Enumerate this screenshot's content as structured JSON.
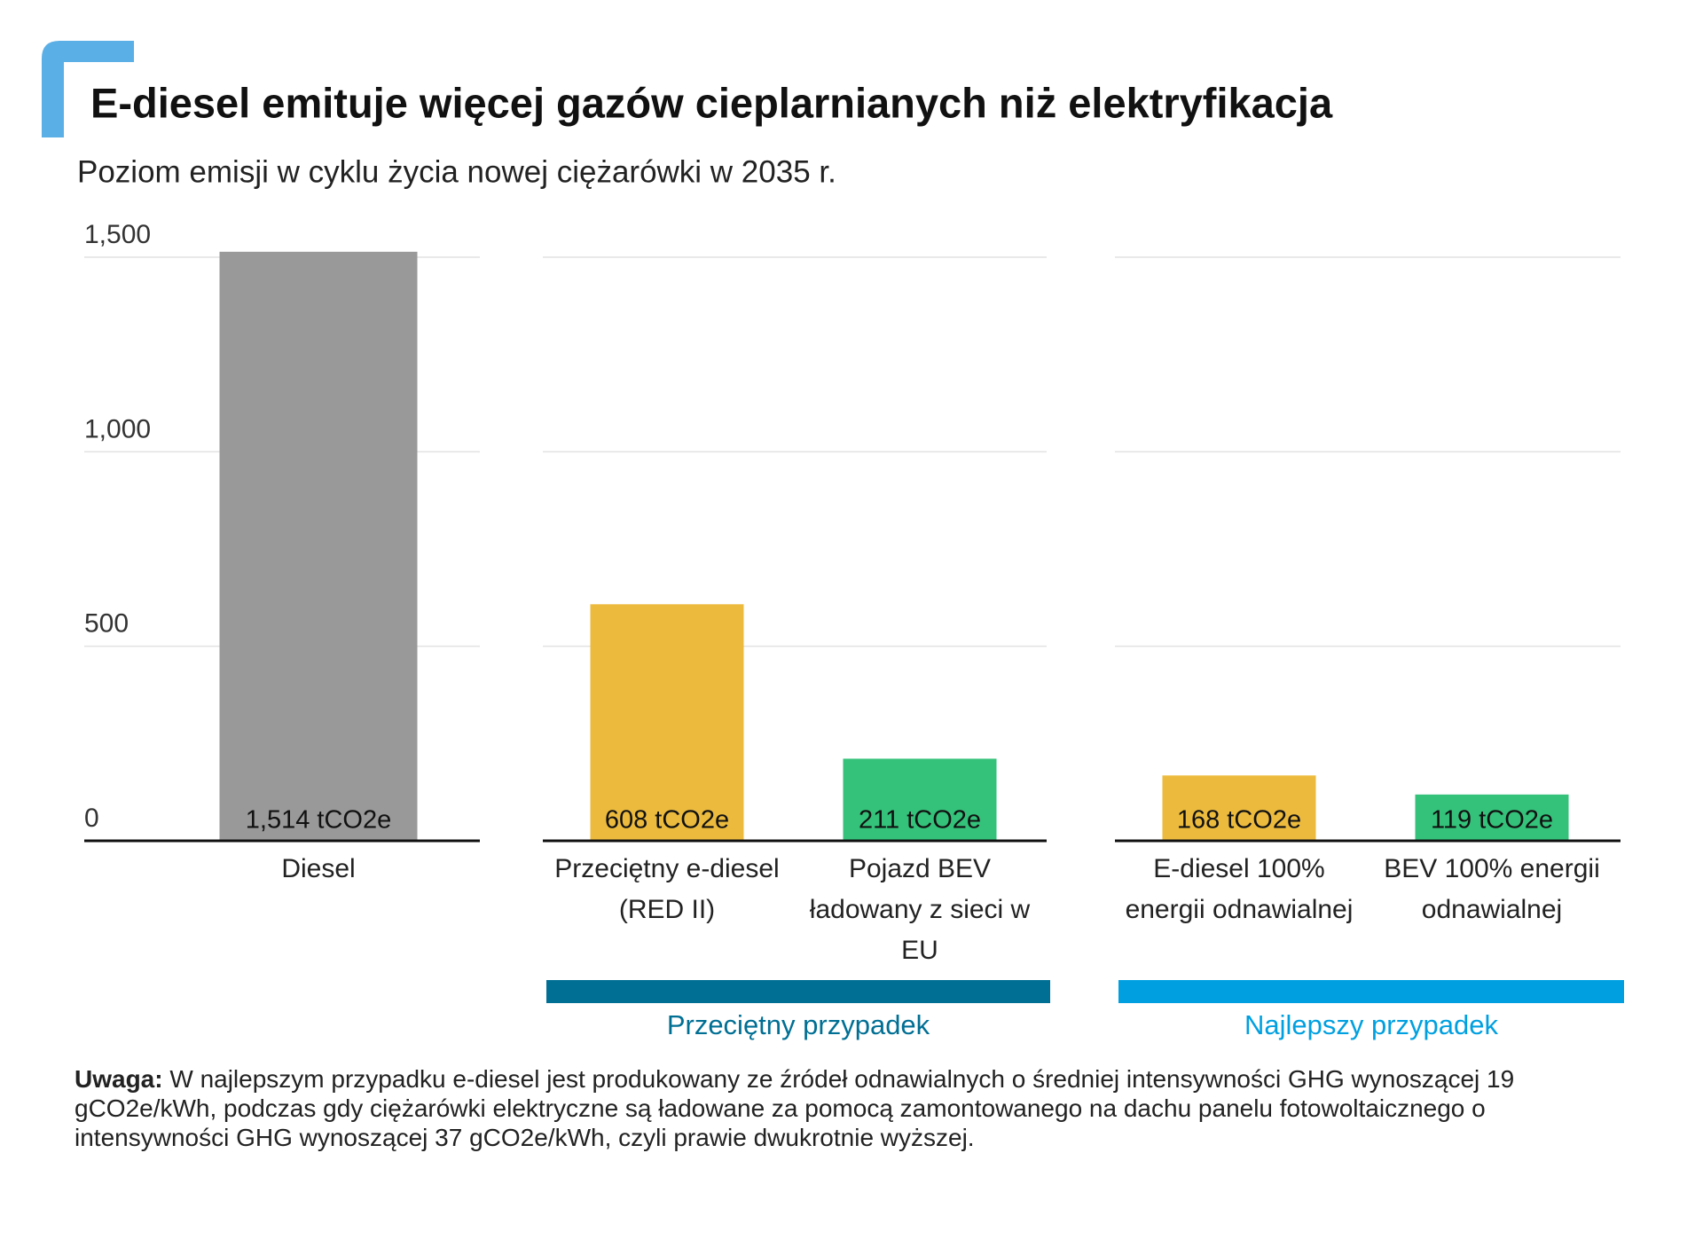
{
  "chart_data": {
    "type": "bar",
    "title": "E-diesel emituje więcej gazów cieplarnianych niż elektryfikacja",
    "subtitle": "Poziom emisji w cyklu życia nowej ciężarówki w 2035 r.",
    "categories": [
      "Diesel",
      "Przeciętny e-diesel (RED II)",
      "Pojazd BEV ładowany z sieci w EU",
      "E-diesel 100% energii odnawialnej",
      "BEV 100% energii odnawialnej"
    ],
    "values": [
      1514,
      608,
      211,
      168,
      119
    ],
    "value_labels": [
      "1,514 tCO2e",
      "608 tCO2e",
      "211 tCO2e",
      "168 tCO2e",
      "119 tCO2e"
    ],
    "colors": [
      "#999999",
      "#ecbb3e",
      "#34c27a",
      "#ecbb3e",
      "#34c27a"
    ],
    "ylim": [
      0,
      1500
    ],
    "yticks": [
      0,
      500,
      {
        "value": 1000,
        "label": "1,000"
      },
      {
        "value": 1500,
        "label": "1,500"
      }
    ],
    "grid": true,
    "groups": [
      {
        "name": "Przeciętny przypadek",
        "color": "#006f94"
      },
      {
        "name": "Najlepszy przypadek",
        "color": "#00a0e0"
      }
    ],
    "note": {
      "label": "Uwaga:",
      "text": "W najlepszym przypadku e-diesel jest produkowany ze źródeł odnawialnych o średniej intensywności GHG wynoszącej 19 gCO2e/kWh, podczas gdy ciężarówki elektryczne są ładowane za pomocą zamontowanego na dachu panelu fotowoltaicznego o intensywności GHG wynoszącej 37 gCO2e/kWh, czyli prawie dwukrotnie wyższej."
    }
  }
}
